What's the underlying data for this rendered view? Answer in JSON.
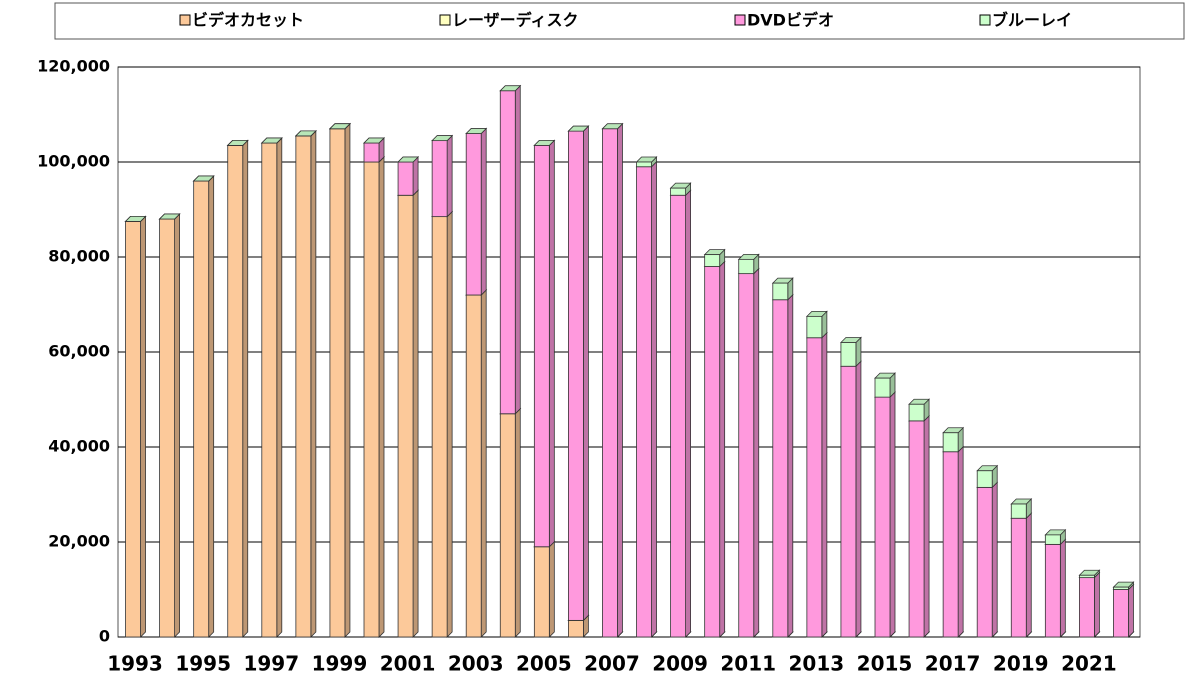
{
  "chart_data": {
    "type": "stacked_bar",
    "categories": [
      "1993",
      null,
      "1995",
      null,
      "1997",
      null,
      "1999",
      null,
      "2001",
      null,
      "2003",
      null,
      "2005",
      null,
      "2007",
      null,
      "2009",
      null,
      "2011",
      null,
      "2013",
      null,
      "2015",
      null,
      "2017",
      null,
      "2019",
      null,
      "2021",
      null
    ],
    "series": [
      {
        "name": "ビデオカセット",
        "color": "#fcc99a",
        "values": [
          87500,
          88000,
          96000,
          103500,
          104000,
          105500,
          107000,
          100000,
          93000,
          88500,
          72000,
          47000,
          19000,
          3500,
          0,
          0,
          0,
          0,
          0,
          0,
          0,
          0,
          0,
          0,
          0,
          0,
          0,
          0,
          0,
          0
        ]
      },
      {
        "name": "レーザーディスク",
        "color": "#ffffc0",
        "values": [
          0,
          0,
          0,
          0,
          0,
          0,
          0,
          0,
          0,
          0,
          0,
          0,
          0,
          0,
          0,
          0,
          0,
          0,
          0,
          0,
          0,
          0,
          0,
          0,
          0,
          0,
          0,
          0,
          0,
          0
        ]
      },
      {
        "name": "DVDビデオ",
        "color": "#ff99dd",
        "values": [
          0,
          0,
          0,
          0,
          0,
          0,
          0,
          4000,
          7000,
          16000,
          34000,
          68000,
          84500,
          103000,
          107000,
          99000,
          93000,
          78000,
          76500,
          71000,
          63000,
          57000,
          50500,
          45500,
          39000,
          31500,
          25000,
          19500,
          12500,
          10000
        ]
      },
      {
        "name": "ブルーレイ",
        "color": "#ccffcc",
        "values": [
          0,
          0,
          0,
          0,
          0,
          0,
          0,
          0,
          0,
          0,
          0,
          0,
          0,
          0,
          0,
          1000,
          1500,
          2500,
          3000,
          3500,
          4500,
          5000,
          4000,
          3500,
          4000,
          3500,
          3000,
          2000,
          500,
          500
        ]
      }
    ],
    "ylim": [
      0,
      120000
    ],
    "yticks": [
      0,
      {
        "value": 20000,
        "label": "20,000"
      },
      {
        "value": 40000,
        "label": "40,000"
      },
      {
        "value": 60000,
        "label": "60,000"
      },
      {
        "value": 80000,
        "label": "80,000"
      },
      {
        "value": 100000,
        "label": "100,000"
      },
      {
        "value": 120000,
        "label": "120,000"
      }
    ],
    "grid": true,
    "legend": "top"
  }
}
